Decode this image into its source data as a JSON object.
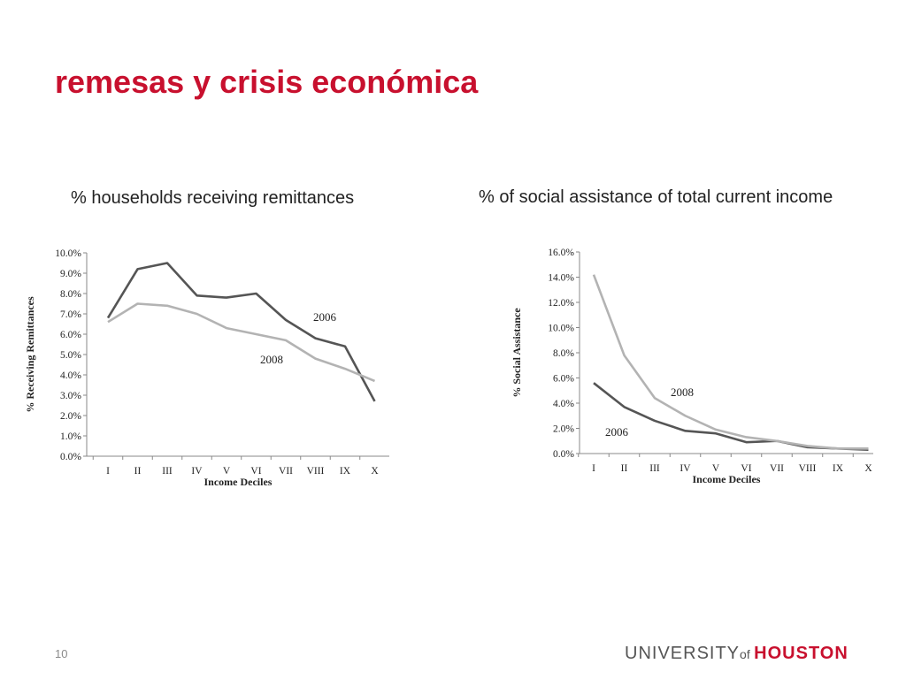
{
  "slide": {
    "title": "remesas y crisis económica",
    "page_number": "10",
    "logo": {
      "part1": "UNIVERSITY",
      "part2": "of",
      "part3": "HOUSTON"
    }
  },
  "panels": [
    {
      "heading": "% households receiving remittances"
    },
    {
      "heading": "% of social assistance of total current income"
    }
  ],
  "chart_data": [
    {
      "type": "line",
      "title": "",
      "xlabel": "Income Deciles",
      "ylabel": "% Receiving Remittances",
      "categories": [
        "I",
        "II",
        "III",
        "IV",
        "V",
        "VI",
        "VII",
        "VIII",
        "IX",
        "X"
      ],
      "y_ticks": [
        "0.0%",
        "1.0%",
        "2.0%",
        "3.0%",
        "4.0%",
        "5.0%",
        "6.0%",
        "7.0%",
        "8.0%",
        "9.0%",
        "10.0%"
      ],
      "ylim": [
        0,
        10
      ],
      "grid": false,
      "series": [
        {
          "name": "2006",
          "color": "#555555",
          "values": [
            6.8,
            9.2,
            9.5,
            7.9,
            7.8,
            8.0,
            6.7,
            5.8,
            5.4,
            2.7
          ]
        },
        {
          "name": "2008",
          "color": "#b3b3b3",
          "values": [
            6.6,
            7.5,
            7.4,
            7.0,
            6.3,
            6.0,
            5.7,
            4.8,
            4.3,
            3.7
          ]
        }
      ]
    },
    {
      "type": "line",
      "title": "",
      "xlabel": "Income Deciles",
      "ylabel": "% Social Assistance",
      "categories": [
        "I",
        "II",
        "III",
        "IV",
        "V",
        "VI",
        "VII",
        "VIII",
        "IX",
        "X"
      ],
      "y_ticks": [
        "0.0%",
        "2.0%",
        "4.0%",
        "6.0%",
        "8.0%",
        "10.0%",
        "12.0%",
        "14.0%",
        "16.0%"
      ],
      "ylim": [
        0,
        16
      ],
      "grid": false,
      "series": [
        {
          "name": "2006",
          "color": "#555555",
          "values": [
            5.6,
            3.7,
            2.6,
            1.8,
            1.6,
            0.9,
            1.0,
            0.5,
            0.4,
            0.3
          ]
        },
        {
          "name": "2008",
          "color": "#b3b3b3",
          "values": [
            14.2,
            7.8,
            4.4,
            3.0,
            1.9,
            1.3,
            1.0,
            0.6,
            0.4,
            0.4
          ]
        }
      ]
    }
  ]
}
